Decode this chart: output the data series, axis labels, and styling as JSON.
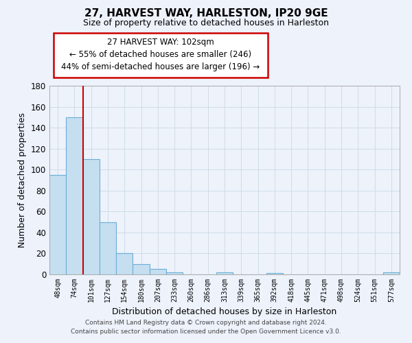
{
  "title": "27, HARVEST WAY, HARLESTON, IP20 9GE",
  "subtitle": "Size of property relative to detached houses in Harleston",
  "xlabel": "Distribution of detached houses by size in Harleston",
  "ylabel": "Number of detached properties",
  "bar_labels": [
    "48sqm",
    "74sqm",
    "101sqm",
    "127sqm",
    "154sqm",
    "180sqm",
    "207sqm",
    "233sqm",
    "260sqm",
    "286sqm",
    "313sqm",
    "339sqm",
    "365sqm",
    "392sqm",
    "418sqm",
    "445sqm",
    "471sqm",
    "498sqm",
    "524sqm",
    "551sqm",
    "577sqm"
  ],
  "bar_values": [
    95,
    150,
    110,
    50,
    20,
    10,
    5,
    2,
    0,
    0,
    2,
    0,
    0,
    1,
    0,
    0,
    0,
    0,
    0,
    0,
    2
  ],
  "bar_color": "#c5dff0",
  "bar_edge_color": "#6aadd5",
  "grid_color": "#d0dce8",
  "annotation_line_color": "#cc0000",
  "annotation_box_text": "27 HARVEST WAY: 102sqm\n← 55% of detached houses are smaller (246)\n44% of semi-detached houses are larger (196) →",
  "ylim": [
    0,
    180
  ],
  "yticks": [
    0,
    20,
    40,
    60,
    80,
    100,
    120,
    140,
    160,
    180
  ],
  "footer_line1": "Contains HM Land Registry data © Crown copyright and database right 2024.",
  "footer_line2": "Contains public sector information licensed under the Open Government Licence v3.0.",
  "bg_color": "#edf2fb"
}
